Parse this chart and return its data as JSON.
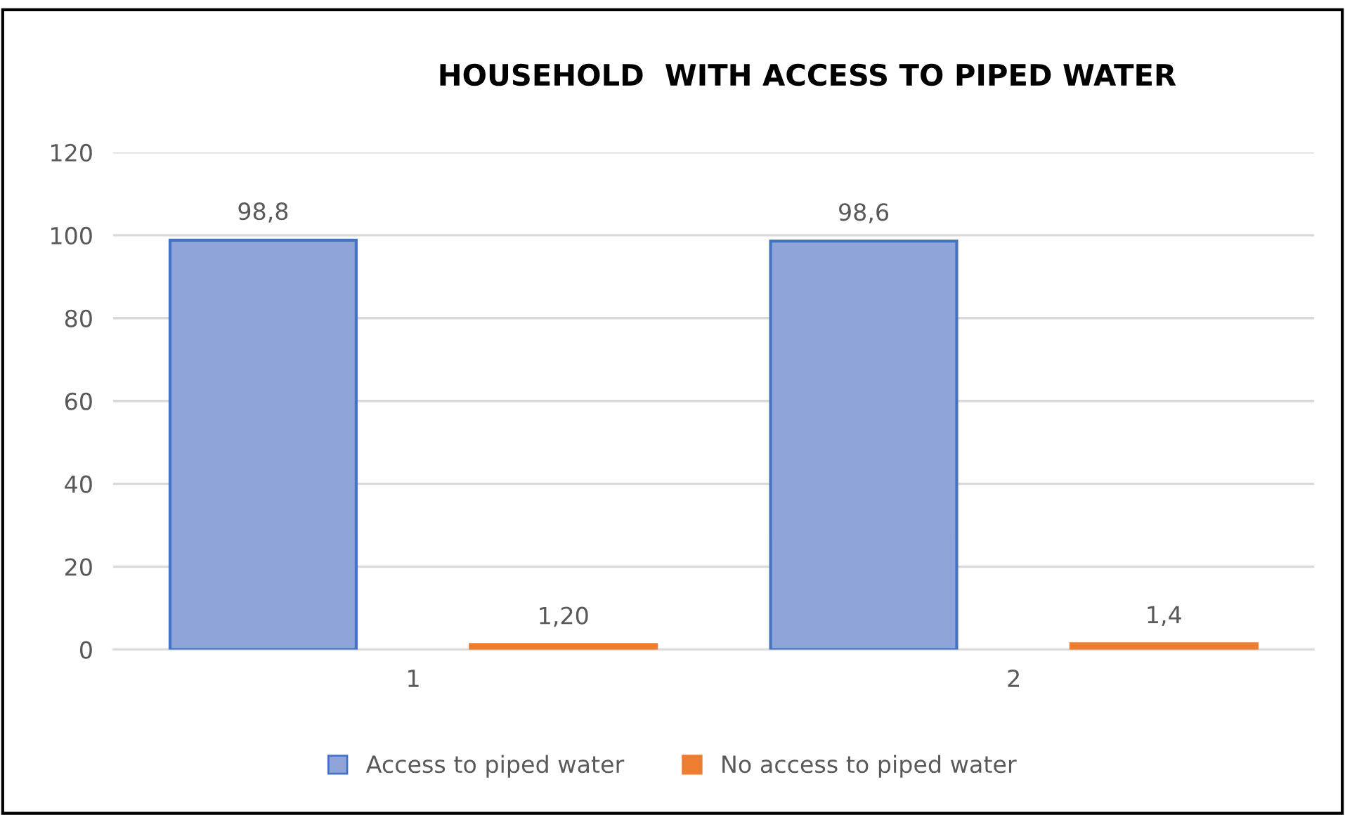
{
  "chart_data": {
    "type": "bar",
    "title": "HOUSEHOLD  WITH ACCESS TO PIPED WATER",
    "categories": [
      "1",
      "2"
    ],
    "series": [
      {
        "name": "Access to piped water",
        "color": "#8fa5da",
        "values": [
          98.8,
          98.6
        ],
        "value_labels": [
          "98,8",
          "98,6"
        ]
      },
      {
        "name": "No access to piped water",
        "color": "#ed7d31",
        "values": [
          1.2,
          1.4
        ],
        "value_labels": [
          "1,20",
          "1,4"
        ]
      }
    ],
    "ylim": [
      0,
      120
    ],
    "yticks": [
      0,
      20,
      40,
      60,
      80,
      100,
      120
    ],
    "grid": "y",
    "legend": "bottom"
  }
}
